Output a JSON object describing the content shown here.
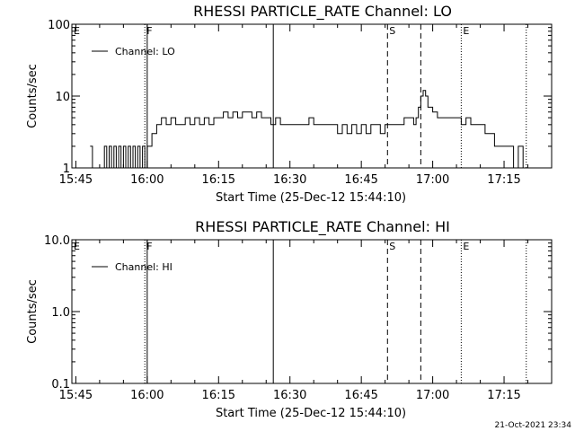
{
  "footer": {
    "timestamp": "21-Oct-2021 23:34"
  },
  "chart_data": [
    {
      "type": "line",
      "title": "RHESSI PARTICLE_RATE Channel: LO",
      "xlabel": "Start Time (25-Dec-12 15:44:10)",
      "ylabel": "Counts/sec",
      "y_scale": "log",
      "xlim": [
        "15:44:10",
        "17:25:00"
      ],
      "ylim": [
        1,
        100
      ],
      "x_ticks": [
        "15:45",
        "16:00",
        "16:15",
        "16:30",
        "16:45",
        "17:00",
        "17:15"
      ],
      "y_ticks": [
        "1",
        "10",
        "100"
      ],
      "legend": {
        "position": "top-left",
        "entries": [
          "Channel: LO"
        ]
      },
      "markers": [
        {
          "label": "E",
          "time": "15:44:10",
          "style": "dotted"
        },
        {
          "label": "F",
          "time": "15:59:30",
          "style": "dotted"
        },
        {
          "label": "",
          "time": "16:00:00",
          "style": "solid"
        },
        {
          "label": "",
          "time": "16:26:30",
          "style": "solid"
        },
        {
          "label": "S",
          "time": "16:50:30",
          "style": "dashed"
        },
        {
          "label": "",
          "time": "16:57:30",
          "style": "dashed"
        },
        {
          "label": "E",
          "time": "17:06:00",
          "style": "dotted"
        },
        {
          "label": "",
          "time": "17:19:40",
          "style": "dotted"
        }
      ],
      "series": [
        {
          "name": "Channel: LO",
          "x": [
            "15:48:00",
            "15:48:30",
            "15:49:00",
            "15:50:30",
            "15:51:00",
            "15:51:30",
            "15:52:00",
            "15:52:30",
            "15:53:00",
            "15:53:30",
            "15:54:00",
            "15:54:30",
            "15:55:00",
            "15:55:30",
            "15:56:00",
            "15:56:30",
            "15:57:00",
            "15:57:30",
            "15:58:00",
            "15:58:30",
            "15:59:00",
            "15:59:30",
            "16:00:00",
            "16:01:00",
            "16:02:00",
            "16:03:00",
            "16:04:00",
            "16:05:00",
            "16:06:00",
            "16:07:00",
            "16:08:00",
            "16:09:00",
            "16:10:00",
            "16:11:00",
            "16:12:00",
            "16:13:00",
            "16:14:00",
            "16:15:00",
            "16:16:00",
            "16:17:00",
            "16:18:00",
            "16:19:00",
            "16:20:00",
            "16:21:00",
            "16:22:00",
            "16:23:00",
            "16:24:00",
            "16:25:00",
            "16:26:00",
            "16:27:00",
            "16:28:00",
            "16:29:00",
            "16:30:00",
            "16:31:00",
            "16:32:00",
            "16:33:00",
            "16:34:00",
            "16:35:00",
            "16:36:00",
            "16:37:00",
            "16:38:00",
            "16:39:00",
            "16:40:00",
            "16:41:00",
            "16:42:00",
            "16:43:00",
            "16:44:00",
            "16:45:00",
            "16:46:00",
            "16:47:00",
            "16:48:00",
            "16:49:00",
            "16:50:00",
            "16:51:00",
            "16:52:00",
            "16:53:00",
            "16:54:00",
            "16:55:00",
            "16:56:00",
            "16:56:30",
            "16:57:00",
            "16:57:30",
            "16:58:00",
            "16:58:30",
            "16:59:00",
            "17:00:00",
            "17:01:00",
            "17:02:00",
            "17:03:00",
            "17:04:00",
            "17:05:00",
            "17:06:00",
            "17:07:00",
            "17:08:00",
            "17:09:00",
            "17:10:00",
            "17:11:00",
            "17:12:00",
            "17:13:00",
            "17:14:00",
            "17:15:00",
            "17:16:00",
            "17:17:00",
            "17:18:00",
            "17:19:00"
          ],
          "y": [
            2,
            1,
            1,
            1,
            2,
            1,
            2,
            1,
            2,
            1,
            2,
            1,
            2,
            1,
            2,
            1,
            2,
            1,
            2,
            1,
            2,
            1,
            2,
            3,
            4,
            5,
            4,
            5,
            4,
            4,
            5,
            4,
            5,
            4,
            5,
            4,
            5,
            5,
            6,
            5,
            6,
            5,
            6,
            6,
            5,
            6,
            5,
            5,
            4,
            5,
            4,
            4,
            4,
            4,
            4,
            4,
            5,
            4,
            4,
            4,
            4,
            4,
            3,
            4,
            3,
            4,
            3,
            4,
            3,
            4,
            4,
            3,
            4,
            4,
            4,
            4,
            5,
            5,
            4,
            5,
            7,
            10,
            12,
            10,
            7,
            6,
            5,
            5,
            5,
            5,
            5,
            4,
            5,
            4,
            4,
            4,
            3,
            3,
            2,
            2,
            2,
            2,
            1,
            2,
            1
          ]
        }
      ]
    },
    {
      "type": "line",
      "title": "RHESSI PARTICLE_RATE Channel: HI",
      "xlabel": "Start Time (25-Dec-12 15:44:10)",
      "ylabel": "Counts/sec",
      "y_scale": "log",
      "xlim": [
        "15:44:10",
        "17:25:00"
      ],
      "ylim": [
        0.1,
        10.0
      ],
      "x_ticks": [
        "15:45",
        "16:00",
        "16:15",
        "16:30",
        "16:45",
        "17:00",
        "17:15"
      ],
      "y_ticks": [
        "0.1",
        "1.0",
        "10.0"
      ],
      "legend": {
        "position": "top-left",
        "entries": [
          "Channel: HI"
        ]
      },
      "markers": [
        {
          "label": "E",
          "time": "15:44:10",
          "style": "dotted"
        },
        {
          "label": "F",
          "time": "15:59:30",
          "style": "dotted"
        },
        {
          "label": "",
          "time": "16:00:00",
          "style": "solid"
        },
        {
          "label": "",
          "time": "16:26:30",
          "style": "solid"
        },
        {
          "label": "S",
          "time": "16:50:30",
          "style": "dashed"
        },
        {
          "label": "",
          "time": "16:57:30",
          "style": "dashed"
        },
        {
          "label": "E",
          "time": "17:06:00",
          "style": "dotted"
        },
        {
          "label": "",
          "time": "17:19:40",
          "style": "dotted"
        }
      ],
      "series": [
        {
          "name": "Channel: HI",
          "x": [],
          "y": []
        }
      ]
    }
  ]
}
